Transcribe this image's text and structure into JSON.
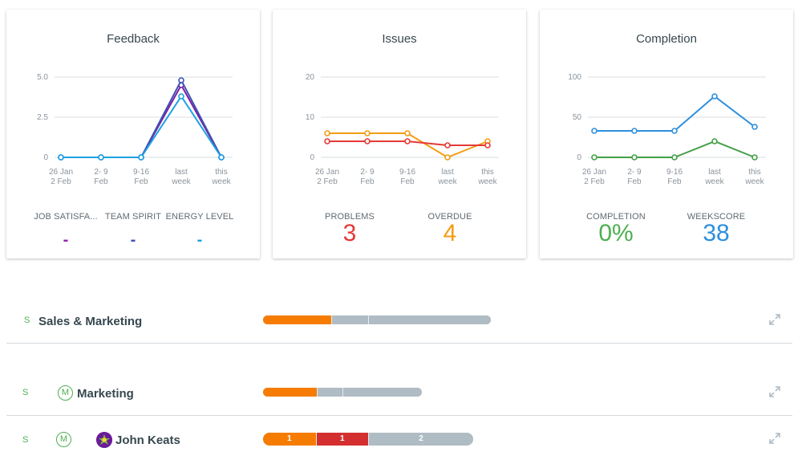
{
  "cards": {
    "feedback": {
      "title": "Feedback",
      "x_ticks": [
        [
          "26 Jan",
          "2 Feb"
        ],
        [
          "2- 9",
          "Feb"
        ],
        [
          "9-16",
          "Feb"
        ],
        [
          "last",
          "week"
        ],
        [
          "this",
          "week"
        ]
      ],
      "y_ticks": [
        "5.0",
        "2.5",
        "0"
      ],
      "ylim": [
        0,
        5
      ],
      "series": [
        {
          "color": "#7b1fa2",
          "values": [
            0,
            0,
            0,
            4.5,
            0
          ]
        },
        {
          "color": "#3f51b5",
          "values": [
            0,
            0,
            0,
            4.8,
            0
          ]
        },
        {
          "color": "#1ea1e2",
          "values": [
            0,
            0,
            0,
            3.8,
            0
          ]
        }
      ],
      "stats": [
        {
          "label": "JOB SATISFA...",
          "value": "-",
          "color": "#8e24aa"
        },
        {
          "label": "TEAM SPIRIT",
          "value": "-",
          "color": "#3f51b5"
        },
        {
          "label": "ENERGY LEVEL",
          "value": "-",
          "color": "#1ea1e2"
        }
      ]
    },
    "issues": {
      "title": "Issues",
      "x_ticks": [
        [
          "26 Jan",
          "2 Feb"
        ],
        [
          "2- 9",
          "Feb"
        ],
        [
          "9-16",
          "Feb"
        ],
        [
          "last",
          "week"
        ],
        [
          "this",
          "week"
        ]
      ],
      "y_ticks": [
        "20",
        "10",
        "0"
      ],
      "ylim": [
        0,
        20
      ],
      "series": [
        {
          "color": "#f39c12",
          "values": [
            6,
            6,
            6,
            0,
            4
          ]
        },
        {
          "color": "#e53935",
          "values": [
            4,
            4,
            4,
            3,
            3
          ]
        }
      ],
      "stats": [
        {
          "label": "PROBLEMS",
          "value": "3",
          "color": "#e53935"
        },
        {
          "label": "OVERDUE",
          "value": "4",
          "color": "#f39c12"
        }
      ]
    },
    "completion": {
      "title": "Completion",
      "x_ticks": [
        [
          "26 Jan",
          "2 Feb"
        ],
        [
          "2- 9",
          "Feb"
        ],
        [
          "9-16",
          "Feb"
        ],
        [
          "last",
          "week"
        ],
        [
          "this",
          "week"
        ]
      ],
      "y_ticks": [
        "100",
        "50",
        "0"
      ],
      "ylim": [
        0,
        100
      ],
      "series": [
        {
          "color": "#2d8fdd",
          "values": [
            33,
            33,
            33,
            76,
            38
          ]
        },
        {
          "color": "#43a047",
          "values": [
            0,
            0,
            0,
            20,
            0
          ]
        }
      ],
      "stats": [
        {
          "label": "COMPLETION",
          "value": "0%",
          "color": "#4caf50"
        },
        {
          "label": "WEEKSCORE",
          "value": "38",
          "color": "#2d8fdd"
        }
      ]
    }
  },
  "rows": [
    {
      "status": "S",
      "name": "Sales & Marketing",
      "badge": "",
      "segments": [
        {
          "label": "",
          "fraction": 0.3,
          "color": "#f57c00"
        },
        {
          "label": "",
          "fraction": 0.16,
          "color": "#b0bcc4"
        },
        {
          "label": "",
          "fraction": 0.54,
          "color": "#b0bcc4"
        }
      ]
    },
    {
      "status": "S",
      "name": "Marketing",
      "badge": "M",
      "segments": [
        {
          "label": "",
          "fraction": 0.34,
          "color": "#f57c00"
        },
        {
          "label": "",
          "fraction": 0.16,
          "color": "#b0bcc4"
        },
        {
          "label": "",
          "fraction": 0.5,
          "color": "#b0bcc4"
        }
      ]
    },
    {
      "status": "S",
      "name": "John Keats",
      "badge": "M",
      "segments": [
        {
          "label": "1",
          "fraction": 0.25,
          "color": "#f57c00"
        },
        {
          "label": "1",
          "fraction": 0.25,
          "color": "#d32f2f"
        },
        {
          "label": "2",
          "fraction": 0.5,
          "color": "#b0bcc4"
        }
      ]
    }
  ],
  "icons": {
    "expand": "expand-arrows-icon",
    "avatar": "user-avatar-icon"
  }
}
